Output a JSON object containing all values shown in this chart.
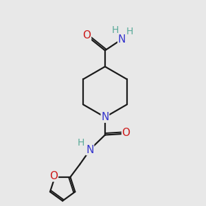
{
  "background_color": "#e8e8e8",
  "bond_color": "#1a1a1a",
  "atom_colors": {
    "N": "#3535cc",
    "O": "#cc1a1a",
    "H": "#5aaa99",
    "C": "#1a1a1a"
  },
  "figsize": [
    3.0,
    3.0
  ],
  "dpi": 100,
  "xlim": [
    0,
    10
  ],
  "ylim": [
    0,
    10
  ]
}
